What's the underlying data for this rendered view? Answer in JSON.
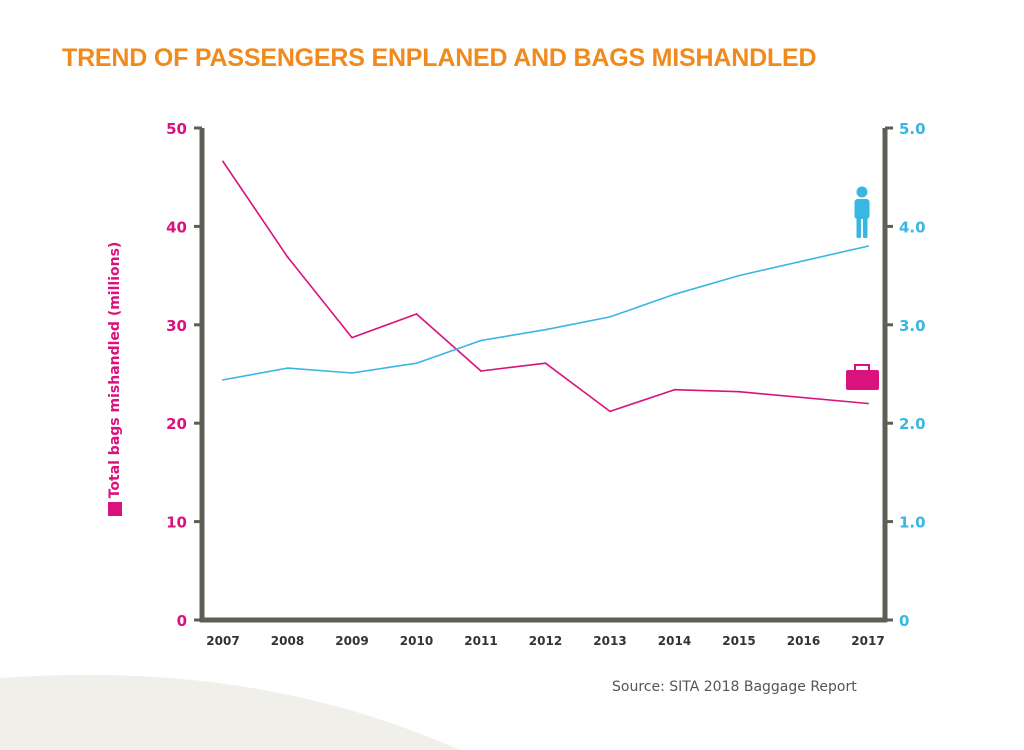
{
  "title": "TREND OF PASSENGERS ENPLANED AND BAGS MISHANDLED",
  "source": "Source: SITA 2018 Baggage Report",
  "colors": {
    "title": "#f08a1c",
    "bags": "#d9127e",
    "passengers": "#3ab6e3",
    "axis": "#5f5e54",
    "source_text": "#555555",
    "background_swoosh": "#f1efe9"
  },
  "icons": {
    "passenger": "person-icon",
    "bags": "suitcase-icon",
    "bags_legend": "pink-square-icon"
  },
  "chart_data": {
    "type": "line",
    "title": "TREND OF PASSENGERS ENPLANED AND BAGS MISHANDLED",
    "x": [
      "2007",
      "2008",
      "2009",
      "2010",
      "2011",
      "2012",
      "2013",
      "2014",
      "2015",
      "2016",
      "2017"
    ],
    "ylabel_left": "Total bags mishandled (millions)",
    "ylabel_right": "",
    "ylim_left": [
      0,
      50
    ],
    "ylim_right": [
      0,
      5.0
    ],
    "yticks_left": [
      "0",
      "10",
      "20",
      "30",
      "40",
      "50"
    ],
    "yticks_right": [
      "0",
      "1.0",
      "2.0",
      "3.0",
      "4.0",
      "5.0"
    ],
    "grid": false,
    "series": [
      {
        "name": "",
        "axis": "left",
        "color": "#d9127e",
        "values": [
          46.6,
          36.9,
          28.7,
          31.1,
          25.3,
          26.1,
          21.2,
          23.4,
          23.2,
          null,
          22.0
        ]
      },
      {
        "name": "",
        "axis": "right",
        "color": "#3ab6e3",
        "values": [
          2.44,
          2.56,
          2.51,
          2.61,
          2.84,
          2.95,
          3.08,
          3.31,
          3.5,
          null,
          3.8
        ]
      }
    ]
  }
}
